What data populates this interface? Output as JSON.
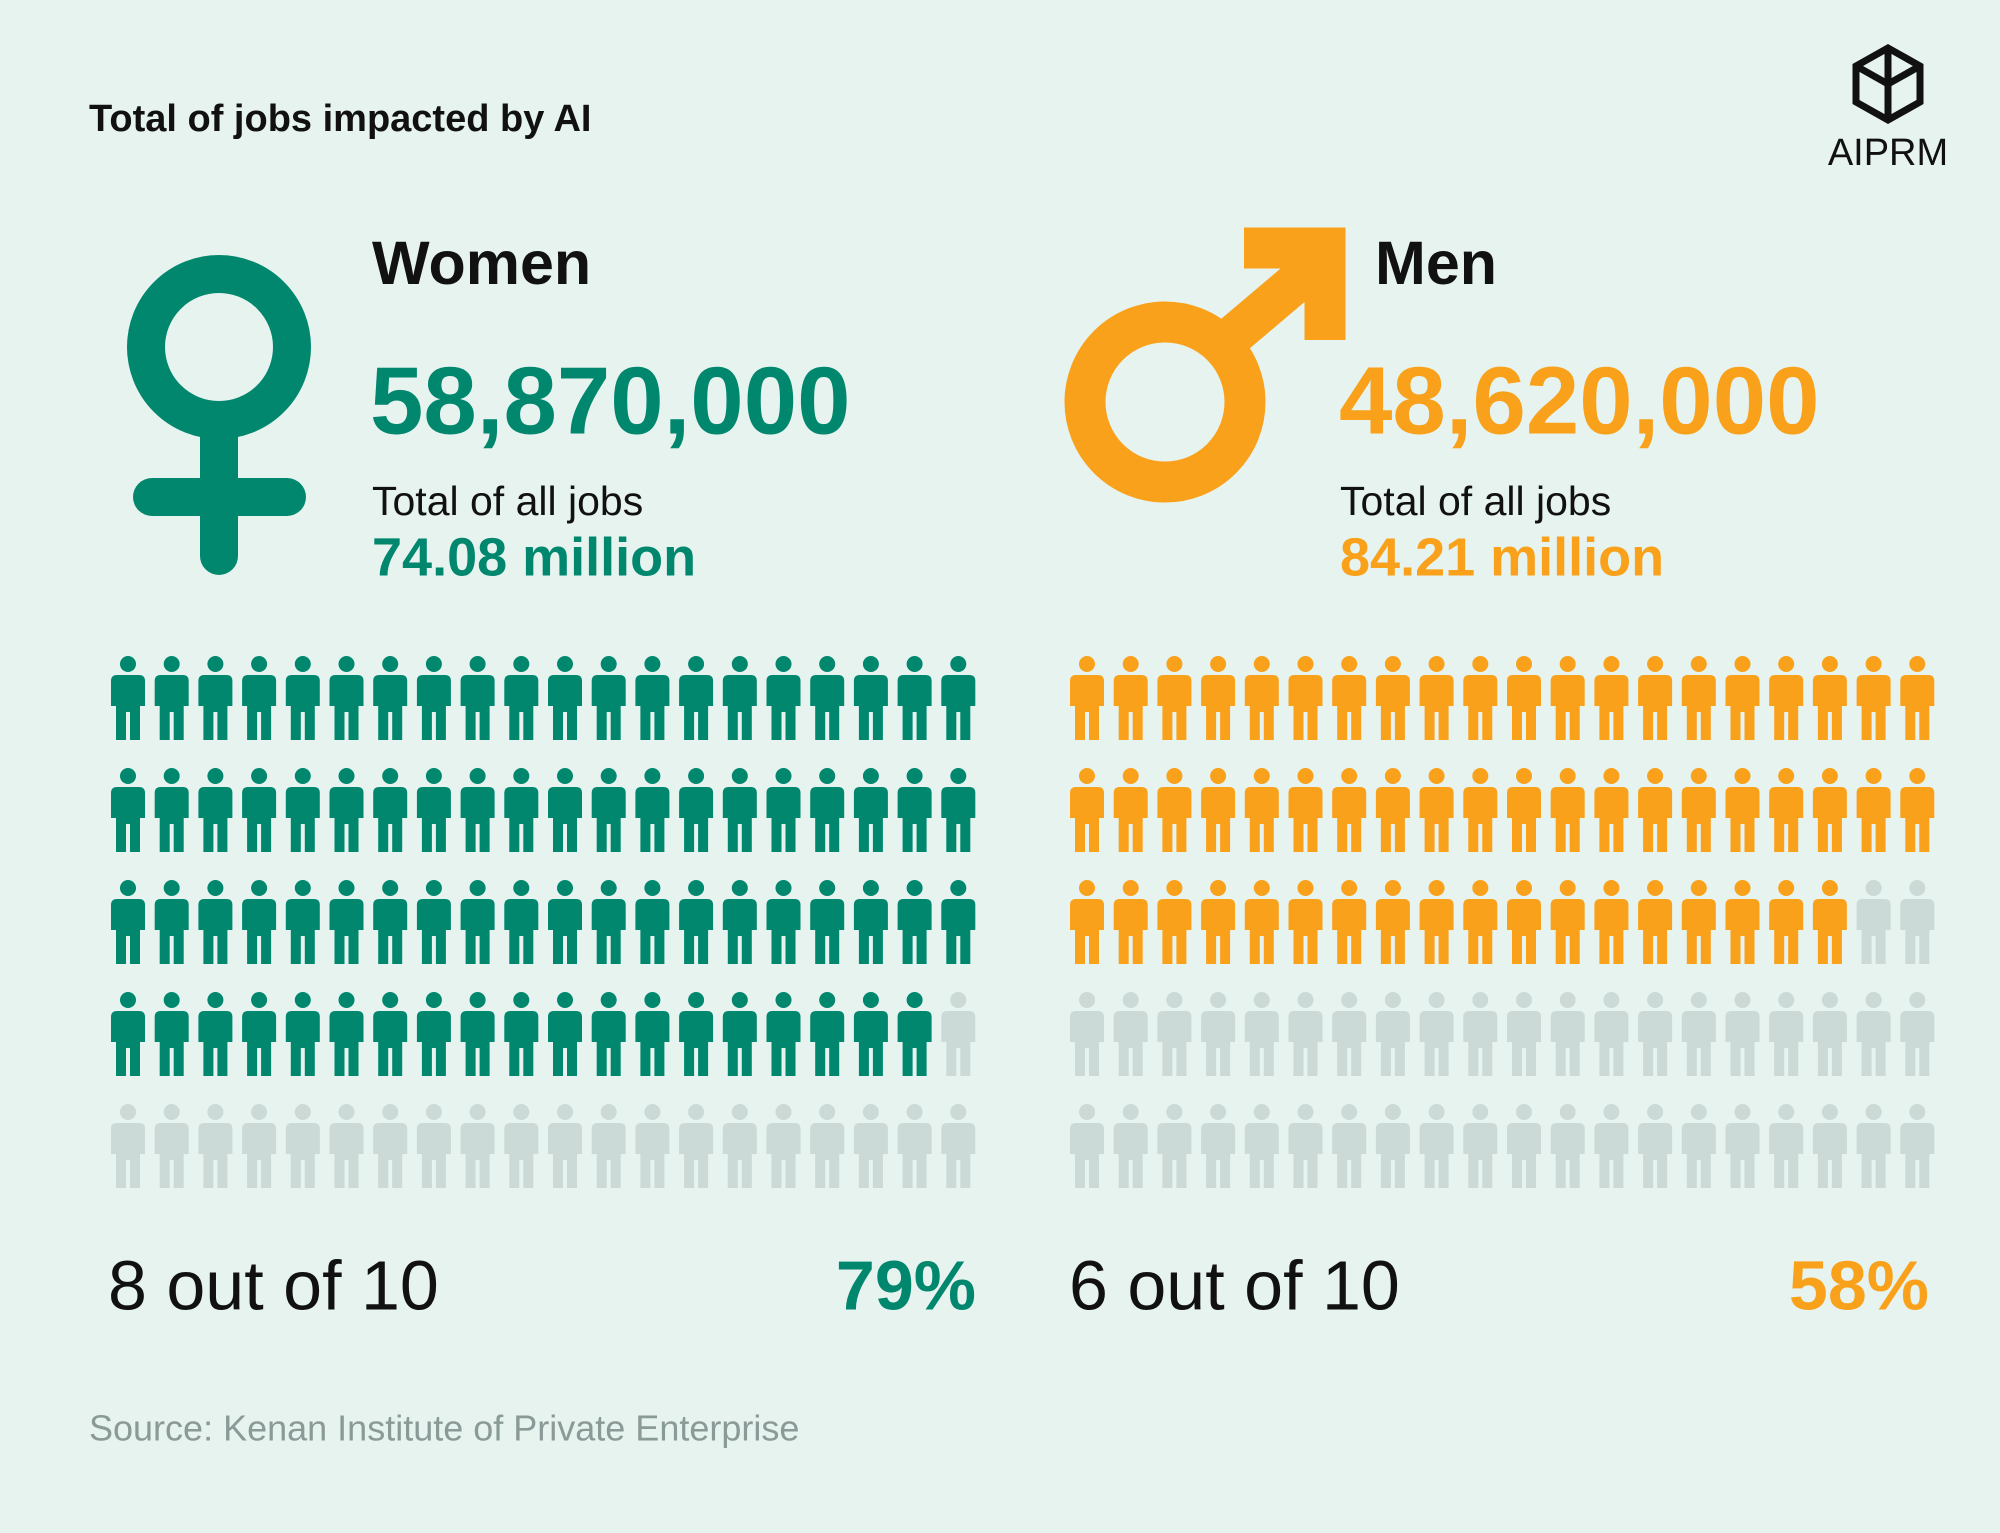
{
  "header": {
    "title": "Total of jobs impacted by AI",
    "logo": "AIPRM"
  },
  "panels": [
    {
      "label": "Women",
      "impacted": "58,870,000",
      "total_label": "Total of all jobs",
      "total": "74.08 million",
      "ratio": "8 out of 10",
      "percent": {
        "value": 79,
        "label": "79%"
      },
      "color": "#00876e"
    },
    {
      "label": "Men",
      "impacted": "48,620,000",
      "total_label": "Total of all jobs",
      "total": "84.21 million",
      "ratio": "6 out of 10",
      "percent": {
        "value": 58,
        "label": "58%"
      },
      "color": "#f9a11b"
    }
  ],
  "source": "Source: Kenan Institute of Private Enterprise"
}
